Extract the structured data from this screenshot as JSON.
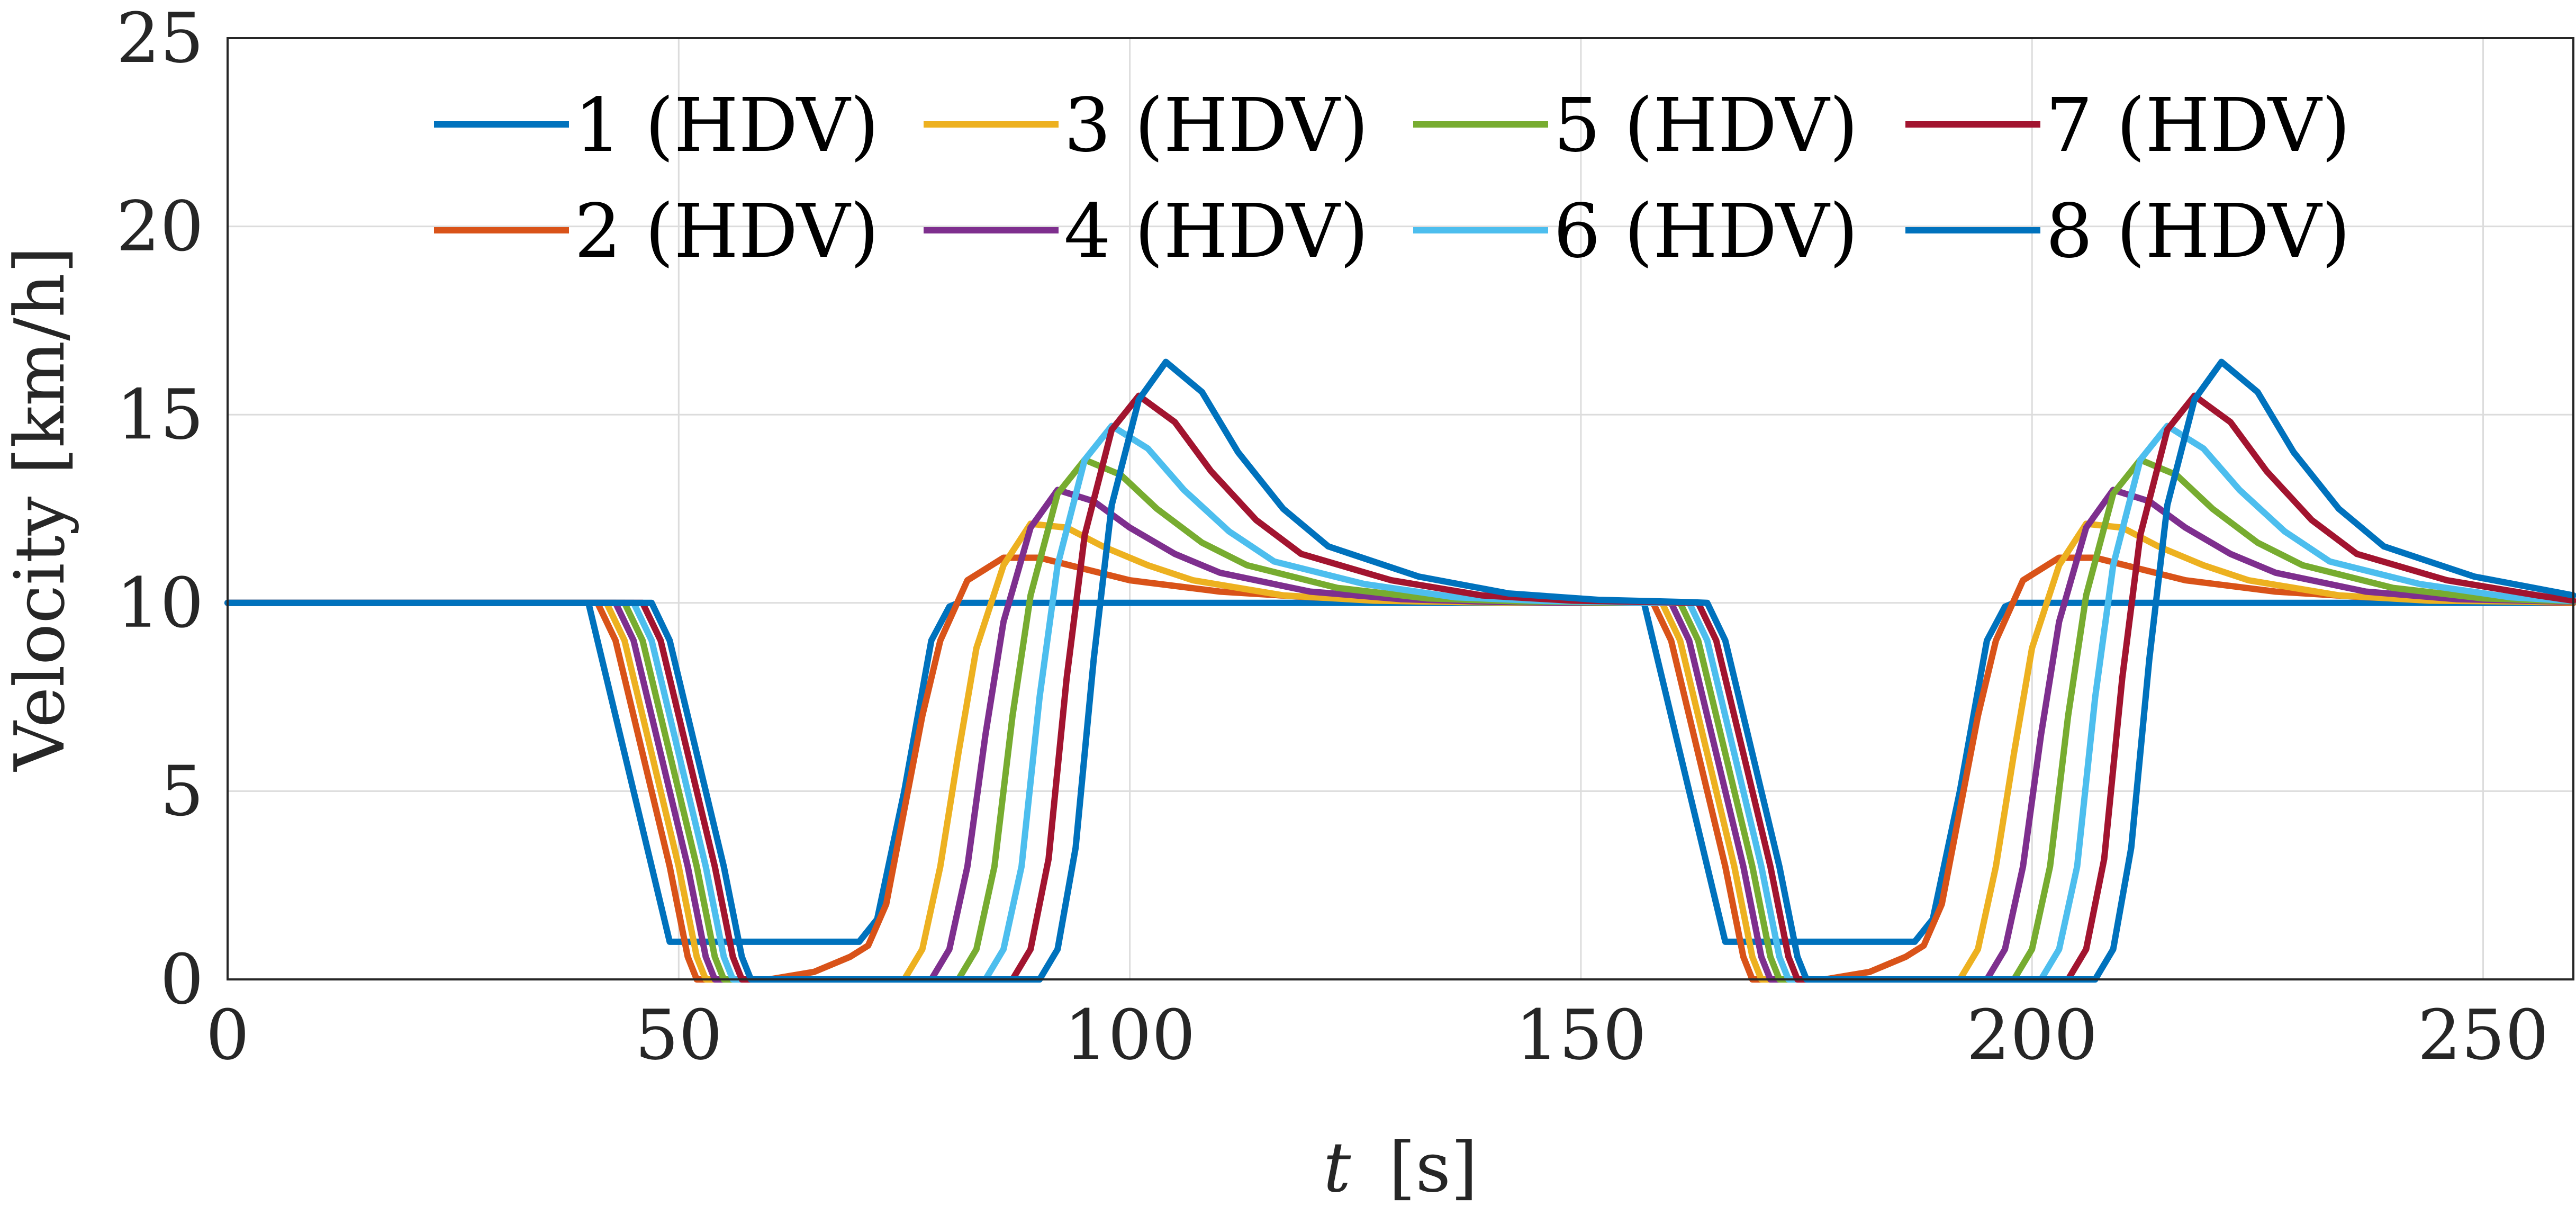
{
  "chart_data": {
    "type": "line",
    "title": "",
    "xlabel_italic": "t",
    "xlabel_unit": "[s]",
    "ylabel": "Velocity [km/h]",
    "xlim": [
      0,
      260
    ],
    "ylim": [
      0,
      25
    ],
    "xticks": [
      0,
      50,
      100,
      150,
      200,
      250
    ],
    "yticks": [
      0,
      5,
      10,
      15,
      20,
      25
    ],
    "grid": true,
    "legend_position": "top",
    "series": [
      {
        "name": "1 (HDV)",
        "color": "#0072BD",
        "x": [
          0,
          40,
          49,
          50,
          70,
          72,
          75,
          78,
          80,
          81,
          157,
          166,
          167,
          187,
          189,
          192,
          195,
          197,
          198,
          260
        ],
        "y": [
          10,
          10,
          1,
          1,
          1,
          1.6,
          5,
          9,
          9.9,
          10,
          10,
          1,
          1,
          1,
          1.6,
          5,
          9,
          9.9,
          10,
          10
        ]
      },
      {
        "name": "2 (HDV)",
        "color": "#D95319",
        "x": [
          0,
          41,
          43,
          46,
          49,
          51,
          52,
          55,
          60,
          65,
          69,
          71,
          73,
          75,
          77,
          79,
          82,
          86,
          90,
          95,
          100,
          110,
          120,
          130,
          140,
          150,
          157,
          158,
          160,
          163,
          166,
          168,
          169,
          172,
          177,
          182,
          186,
          188,
          190,
          192,
          194,
          196,
          199,
          203,
          207,
          212,
          217,
          227,
          237,
          247,
          260
        ],
        "y": [
          10,
          10,
          9,
          6,
          3,
          0.6,
          0,
          0,
          0,
          0.2,
          0.6,
          0.9,
          2,
          4.5,
          7,
          9,
          10.6,
          11.2,
          11.2,
          10.9,
          10.6,
          10.3,
          10.15,
          10.07,
          10.03,
          10.01,
          10,
          10,
          9,
          6,
          3,
          0.6,
          0,
          0,
          0,
          0.2,
          0.6,
          0.9,
          2,
          4.5,
          7,
          9,
          10.6,
          11.2,
          11.2,
          10.9,
          10.6,
          10.3,
          10.15,
          10.07,
          10
        ]
      },
      {
        "name": "3 (HDV)",
        "color": "#EDB120",
        "x": [
          0,
          42,
          44,
          47,
          50,
          52,
          53,
          60,
          70,
          75,
          77,
          79,
          81,
          83,
          86,
          89,
          93,
          97,
          102,
          107,
          117,
          127,
          137,
          147,
          159,
          161,
          164,
          167,
          169,
          170,
          177,
          187,
          192,
          194,
          196,
          198,
          200,
          203,
          206,
          210,
          214,
          219,
          224,
          234,
          244,
          260
        ],
        "y": [
          10,
          10,
          9,
          6,
          3,
          0.6,
          0,
          0,
          0,
          0,
          0.8,
          3,
          6,
          8.8,
          11,
          12.1,
          12,
          11.5,
          11,
          10.6,
          10.2,
          10.06,
          10.02,
          10,
          10,
          9,
          6,
          3,
          0.6,
          0,
          0,
          0,
          0,
          0.8,
          3,
          6,
          8.8,
          11,
          12.1,
          12,
          11.5,
          11,
          10.6,
          10.2,
          10.06,
          10.02
        ]
      },
      {
        "name": "4 (HDV)",
        "color": "#7E2F8E",
        "x": [
          0,
          43,
          45,
          48,
          51,
          53,
          54,
          60,
          70,
          78,
          80,
          82,
          84,
          86,
          89,
          92,
          96,
          100,
          105,
          110,
          120,
          130,
          140,
          150,
          160,
          162,
          165,
          168,
          170,
          171,
          180,
          190,
          195,
          197,
          199,
          201,
          203,
          206,
          209,
          213,
          217,
          222,
          227,
          237,
          247,
          260
        ],
        "y": [
          10,
          10,
          9,
          6,
          3,
          0.6,
          0,
          0,
          0,
          0,
          0.8,
          3,
          6.5,
          9.5,
          12,
          13,
          12.7,
          12,
          11.3,
          10.8,
          10.3,
          10.1,
          10.03,
          10,
          10,
          9,
          6,
          3,
          0.6,
          0,
          0,
          0,
          0,
          0.8,
          3,
          6.5,
          9.5,
          12,
          13,
          12.7,
          12,
          11.3,
          10.8,
          10.3,
          10.1,
          10.03
        ]
      },
      {
        "name": "5 (HDV)",
        "color": "#77AC30",
        "x": [
          0,
          44,
          46,
          49,
          52,
          54,
          55,
          60,
          70,
          81,
          83,
          85,
          87,
          89,
          92,
          95,
          99,
          103,
          108,
          113,
          123,
          133,
          143,
          153,
          161,
          163,
          166,
          169,
          171,
          172,
          180,
          190,
          198,
          200,
          202,
          204,
          206,
          209,
          212,
          216,
          220,
          225,
          230,
          240,
          250,
          260
        ],
        "y": [
          10,
          10,
          9,
          6,
          3,
          0.6,
          0,
          0,
          0,
          0,
          0.8,
          3,
          7,
          10.2,
          12.9,
          13.8,
          13.4,
          12.5,
          11.6,
          11,
          10.4,
          10.12,
          10.04,
          10.01,
          10,
          9,
          6,
          3,
          0.6,
          0,
          0,
          0,
          0,
          0.8,
          3,
          7,
          10.2,
          12.9,
          13.8,
          13.4,
          12.5,
          11.6,
          11,
          10.4,
          10.12,
          10.04
        ]
      },
      {
        "name": "6 (HDV)",
        "color": "#4DBEEE",
        "x": [
          0,
          45,
          47,
          50,
          53,
          55,
          56,
          60,
          70,
          84,
          86,
          88,
          90,
          92,
          95,
          98,
          102,
          106,
          111,
          116,
          126,
          136,
          146,
          156,
          162,
          164,
          167,
          170,
          172,
          173,
          180,
          190,
          201,
          203,
          205,
          207,
          209,
          212,
          215,
          219,
          223,
          228,
          233,
          243,
          253,
          260
        ],
        "y": [
          10,
          10,
          9,
          6,
          3,
          0.6,
          0,
          0,
          0,
          0,
          0.8,
          3,
          7.5,
          11,
          13.8,
          14.7,
          14.1,
          13,
          11.9,
          11.1,
          10.5,
          10.15,
          10.05,
          10.01,
          10,
          9,
          6,
          3,
          0.6,
          0,
          0,
          0,
          0,
          0.8,
          3,
          7.5,
          11,
          13.8,
          14.7,
          14.1,
          13,
          11.9,
          11.1,
          10.5,
          10.15,
          10.05
        ]
      },
      {
        "name": "7 (HDV)",
        "color": "#A2142F",
        "x": [
          0,
          46,
          48,
          51,
          54,
          56,
          57,
          60,
          70,
          87,
          89,
          91,
          93,
          95,
          98,
          101,
          105,
          109,
          114,
          119,
          129,
          139,
          149,
          159,
          163,
          165,
          168,
          171,
          173,
          174,
          180,
          190,
          204,
          206,
          208,
          210,
          212,
          215,
          218,
          222,
          226,
          231,
          236,
          246,
          256,
          260
        ],
        "y": [
          10,
          10,
          9,
          6,
          3,
          0.6,
          0,
          0,
          0,
          0,
          0.8,
          3.2,
          8,
          11.8,
          14.6,
          15.5,
          14.8,
          13.5,
          12.2,
          11.3,
          10.6,
          10.2,
          10.06,
          10.02,
          10,
          9,
          6,
          3,
          0.6,
          0,
          0,
          0,
          0,
          0.8,
          3.2,
          8,
          11.8,
          14.6,
          15.5,
          14.8,
          13.5,
          12.2,
          11.3,
          10.6,
          10.2,
          10.06
        ]
      },
      {
        "name": "8 (HDV)",
        "color": "#0072BD",
        "x": [
          0,
          47,
          49,
          52,
          55,
          57,
          58,
          60,
          70,
          90,
          92,
          94,
          96,
          98,
          101,
          104,
          108,
          112,
          117,
          122,
          132,
          142,
          152,
          162,
          164,
          166,
          169,
          172,
          174,
          175,
          180,
          190,
          207,
          209,
          211,
          213,
          215,
          218,
          221,
          225,
          229,
          234,
          239,
          249,
          260
        ],
        "y": [
          10,
          10,
          9,
          6,
          3,
          0.6,
          0,
          0,
          0,
          0,
          0.8,
          3.5,
          8.5,
          12.6,
          15.4,
          16.4,
          15.6,
          14,
          12.5,
          11.5,
          10.7,
          10.25,
          10.08,
          10.02,
          10,
          9,
          6,
          3,
          0.6,
          0,
          0,
          0,
          0,
          0.8,
          3.5,
          8.5,
          12.6,
          15.4,
          16.4,
          15.6,
          14,
          12.5,
          11.5,
          10.7,
          10.2
        ]
      }
    ]
  }
}
